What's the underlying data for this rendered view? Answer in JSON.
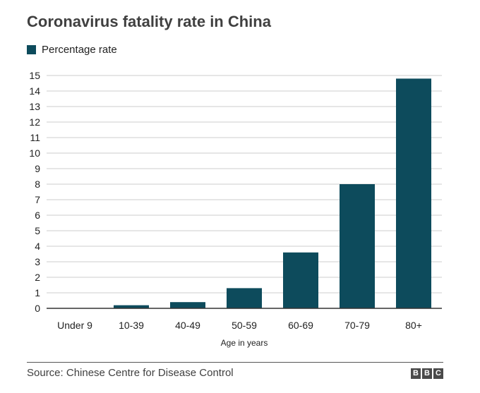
{
  "header": {
    "title": "Coronavirus fatality rate in China"
  },
  "legend": {
    "label": "Percentage rate",
    "color": "#0d4b5c"
  },
  "footer": {
    "source": "Source: Chinese Centre for Disease Control",
    "logo_letters": [
      "B",
      "B",
      "C"
    ]
  },
  "chart_data": {
    "type": "bar",
    "title": "Coronavirus fatality rate in China",
    "xlabel": "Age in years",
    "ylabel": "",
    "categories": [
      "Under 9",
      "10-39",
      "40-49",
      "50-59",
      "60-69",
      "70-79",
      "80+"
    ],
    "series": [
      {
        "name": "Percentage rate",
        "values": [
          0,
          0.2,
          0.4,
          1.3,
          3.6,
          8.0,
          14.8
        ],
        "color": "#0d4b5c"
      }
    ],
    "ylim": [
      0,
      15
    ],
    "yticks": [
      0,
      1,
      2,
      3,
      4,
      5,
      6,
      7,
      8,
      9,
      10,
      11,
      12,
      13,
      14,
      15
    ],
    "grid": true,
    "legend_position": "top-left"
  }
}
